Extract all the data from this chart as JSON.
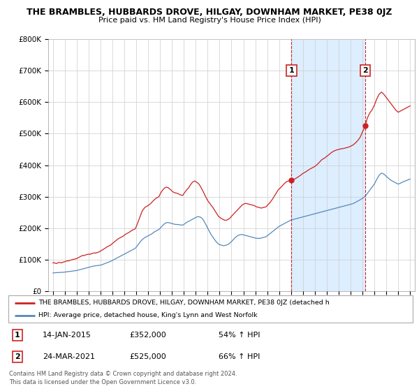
{
  "title": "THE BRAMBLES, HUBBARDS DROVE, HILGAY, DOWNHAM MARKET, PE38 0JZ",
  "subtitle": "Price paid vs. HM Land Registry's House Price Index (HPI)",
  "legend_line1": "THE BRAMBLES, HUBBARDS DROVE, HILGAY, DOWNHAM MARKET, PE38 0JZ (detached h",
  "legend_line2": "HPI: Average price, detached house, King's Lynn and West Norfolk",
  "footer1": "Contains HM Land Registry data © Crown copyright and database right 2024.",
  "footer2": "This data is licensed under the Open Government Licence v3.0.",
  "point1_label": "1",
  "point1_date": "14-JAN-2015",
  "point1_price": "£352,000",
  "point1_hpi": "54% ↑ HPI",
  "point1_x": 2015.04,
  "point1_y": 352000,
  "point2_label": "2",
  "point2_date": "24-MAR-2021",
  "point2_price": "£525,000",
  "point2_hpi": "66% ↑ HPI",
  "point2_x": 2021.23,
  "point2_y": 525000,
  "red_color": "#cc2222",
  "blue_color": "#5588bb",
  "shade_color": "#ddeeff",
  "background_color": "#ffffff",
  "grid_color": "#cccccc",
  "ylim": [
    0,
    800000
  ],
  "xlim_start": 1994.6,
  "xlim_end": 2025.4,
  "red_x": [
    1995.0,
    1995.1,
    1995.2,
    1995.3,
    1995.4,
    1995.5,
    1995.6,
    1995.7,
    1995.8,
    1995.9,
    1996.0,
    1996.1,
    1996.2,
    1996.3,
    1996.4,
    1996.5,
    1996.6,
    1996.7,
    1996.8,
    1996.9,
    1997.0,
    1997.1,
    1997.2,
    1997.3,
    1997.4,
    1997.5,
    1997.6,
    1997.7,
    1997.8,
    1997.9,
    1998.0,
    1998.1,
    1998.2,
    1998.3,
    1998.4,
    1998.5,
    1998.6,
    1998.7,
    1998.8,
    1998.9,
    1999.0,
    1999.1,
    1999.2,
    1999.3,
    1999.4,
    1999.5,
    1999.6,
    1999.7,
    1999.8,
    1999.9,
    2000.0,
    2000.1,
    2000.2,
    2000.3,
    2000.4,
    2000.5,
    2000.6,
    2000.7,
    2000.8,
    2000.9,
    2001.0,
    2001.1,
    2001.2,
    2001.3,
    2001.4,
    2001.5,
    2001.6,
    2001.7,
    2001.8,
    2001.9,
    2002.0,
    2002.1,
    2002.2,
    2002.3,
    2002.4,
    2002.5,
    2002.6,
    2002.7,
    2002.8,
    2002.9,
    2003.0,
    2003.1,
    2003.2,
    2003.3,
    2003.4,
    2003.5,
    2003.6,
    2003.7,
    2003.8,
    2003.9,
    2004.0,
    2004.1,
    2004.2,
    2004.3,
    2004.4,
    2004.5,
    2004.6,
    2004.7,
    2004.8,
    2004.9,
    2005.0,
    2005.1,
    2005.2,
    2005.3,
    2005.4,
    2005.5,
    2005.6,
    2005.7,
    2005.8,
    2005.9,
    2006.0,
    2006.1,
    2006.2,
    2006.3,
    2006.4,
    2006.5,
    2006.6,
    2006.7,
    2006.8,
    2006.9,
    2007.0,
    2007.1,
    2007.2,
    2007.3,
    2007.4,
    2007.5,
    2007.6,
    2007.7,
    2007.8,
    2007.9,
    2008.0,
    2008.1,
    2008.2,
    2008.3,
    2008.4,
    2008.5,
    2008.6,
    2008.7,
    2008.8,
    2008.9,
    2009.0,
    2009.1,
    2009.2,
    2009.3,
    2009.4,
    2009.5,
    2009.6,
    2009.7,
    2009.8,
    2009.9,
    2010.0,
    2010.1,
    2010.2,
    2010.3,
    2010.4,
    2010.5,
    2010.6,
    2010.7,
    2010.8,
    2010.9,
    2011.0,
    2011.1,
    2011.2,
    2011.3,
    2011.4,
    2011.5,
    2011.6,
    2011.7,
    2011.8,
    2011.9,
    2012.0,
    2012.1,
    2012.2,
    2012.3,
    2012.4,
    2012.5,
    2012.6,
    2012.7,
    2012.8,
    2012.9,
    2013.0,
    2013.1,
    2013.2,
    2013.3,
    2013.4,
    2013.5,
    2013.6,
    2013.7,
    2013.8,
    2013.9,
    2014.0,
    2014.1,
    2014.2,
    2014.3,
    2014.4,
    2014.5,
    2014.6,
    2014.7,
    2014.8,
    2014.9,
    2015.04,
    2015.2,
    2015.4,
    2015.6,
    2015.8,
    2016.0,
    2016.2,
    2016.4,
    2016.6,
    2016.8,
    2017.0,
    2017.2,
    2017.4,
    2017.6,
    2017.8,
    2018.0,
    2018.2,
    2018.4,
    2018.6,
    2018.8,
    2019.0,
    2019.2,
    2019.4,
    2019.6,
    2019.8,
    2020.0,
    2020.2,
    2020.4,
    2020.6,
    2020.8,
    2021.23,
    2021.4,
    2021.6,
    2021.8,
    2022.0,
    2022.2,
    2022.4,
    2022.6,
    2022.8,
    2023.0,
    2023.2,
    2023.4,
    2023.6,
    2023.8,
    2024.0,
    2024.2,
    2024.4,
    2024.6,
    2024.8,
    2025.0
  ],
  "red_y": [
    90000,
    91000,
    89000,
    88000,
    90000,
    92000,
    91000,
    90000,
    92000,
    93000,
    94000,
    95000,
    97000,
    96000,
    98000,
    99000,
    100000,
    101000,
    102000,
    103000,
    104000,
    106000,
    108000,
    110000,
    112000,
    114000,
    113000,
    115000,
    116000,
    117000,
    118000,
    117000,
    119000,
    120000,
    121000,
    122000,
    121000,
    123000,
    124000,
    125000,
    128000,
    130000,
    132000,
    135000,
    137000,
    140000,
    142000,
    144000,
    146000,
    148000,
    152000,
    155000,
    158000,
    161000,
    164000,
    167000,
    169000,
    171000,
    173000,
    175000,
    178000,
    181000,
    183000,
    185000,
    187000,
    190000,
    192000,
    195000,
    196000,
    198000,
    205000,
    215000,
    225000,
    235000,
    245000,
    255000,
    260000,
    265000,
    268000,
    270000,
    272000,
    275000,
    278000,
    282000,
    286000,
    290000,
    293000,
    296000,
    298000,
    300000,
    308000,
    315000,
    320000,
    325000,
    328000,
    330000,
    330000,
    328000,
    325000,
    322000,
    318000,
    315000,
    313000,
    312000,
    311000,
    310000,
    308000,
    306000,
    305000,
    304000,
    310000,
    315000,
    320000,
    325000,
    328000,
    335000,
    340000,
    345000,
    348000,
    350000,
    348000,
    345000,
    343000,
    338000,
    332000,
    325000,
    318000,
    310000,
    302000,
    295000,
    288000,
    282000,
    278000,
    272000,
    268000,
    262000,
    256000,
    250000,
    244000,
    238000,
    235000,
    232000,
    230000,
    228000,
    226000,
    225000,
    226000,
    228000,
    230000,
    233000,
    238000,
    242000,
    246000,
    250000,
    254000,
    258000,
    262000,
    266000,
    270000,
    274000,
    276000,
    278000,
    279000,
    278000,
    277000,
    276000,
    275000,
    274000,
    273000,
    272000,
    270000,
    268000,
    267000,
    266000,
    265000,
    264000,
    265000,
    266000,
    267000,
    268000,
    272000,
    276000,
    280000,
    285000,
    290000,
    296000,
    302000,
    308000,
    314000,
    320000,
    325000,
    328000,
    332000,
    336000,
    340000,
    344000,
    347000,
    349000,
    350000,
    351000,
    352000,
    354000,
    358000,
    363000,
    368000,
    374000,
    378000,
    383000,
    388000,
    392000,
    396000,
    402000,
    410000,
    418000,
    422000,
    428000,
    434000,
    440000,
    445000,
    448000,
    450000,
    452000,
    453000,
    455000,
    457000,
    460000,
    464000,
    470000,
    478000,
    488000,
    525000,
    548000,
    565000,
    575000,
    590000,
    610000,
    625000,
    632000,
    625000,
    615000,
    605000,
    595000,
    585000,
    575000,
    568000,
    572000,
    576000,
    580000,
    584000,
    588000
  ],
  "blue_x": [
    1995.0,
    1995.1,
    1995.2,
    1995.3,
    1995.4,
    1995.5,
    1995.6,
    1995.7,
    1995.8,
    1995.9,
    1996.0,
    1996.1,
    1996.2,
    1996.3,
    1996.4,
    1996.5,
    1996.6,
    1996.7,
    1996.8,
    1996.9,
    1997.0,
    1997.1,
    1997.2,
    1997.3,
    1997.4,
    1997.5,
    1997.6,
    1997.7,
    1997.8,
    1997.9,
    1998.0,
    1998.1,
    1998.2,
    1998.3,
    1998.4,
    1998.5,
    1998.6,
    1998.7,
    1998.8,
    1998.9,
    1999.0,
    1999.1,
    1999.2,
    1999.3,
    1999.4,
    1999.5,
    1999.6,
    1999.7,
    1999.8,
    1999.9,
    2000.0,
    2000.1,
    2000.2,
    2000.3,
    2000.4,
    2000.5,
    2000.6,
    2000.7,
    2000.8,
    2000.9,
    2001.0,
    2001.1,
    2001.2,
    2001.3,
    2001.4,
    2001.5,
    2001.6,
    2001.7,
    2001.8,
    2001.9,
    2002.0,
    2002.1,
    2002.2,
    2002.3,
    2002.4,
    2002.5,
    2002.6,
    2002.7,
    2002.8,
    2002.9,
    2003.0,
    2003.1,
    2003.2,
    2003.3,
    2003.4,
    2003.5,
    2003.6,
    2003.7,
    2003.8,
    2003.9,
    2004.0,
    2004.1,
    2004.2,
    2004.3,
    2004.4,
    2004.5,
    2004.6,
    2004.7,
    2004.8,
    2004.9,
    2005.0,
    2005.1,
    2005.2,
    2005.3,
    2005.4,
    2005.5,
    2005.6,
    2005.7,
    2005.8,
    2005.9,
    2006.0,
    2006.1,
    2006.2,
    2006.3,
    2006.4,
    2006.5,
    2006.6,
    2006.7,
    2006.8,
    2006.9,
    2007.0,
    2007.1,
    2007.2,
    2007.3,
    2007.4,
    2007.5,
    2007.6,
    2007.7,
    2007.8,
    2007.9,
    2008.0,
    2008.1,
    2008.2,
    2008.3,
    2008.4,
    2008.5,
    2008.6,
    2008.7,
    2008.8,
    2008.9,
    2009.0,
    2009.1,
    2009.2,
    2009.3,
    2009.4,
    2009.5,
    2009.6,
    2009.7,
    2009.8,
    2009.9,
    2010.0,
    2010.1,
    2010.2,
    2010.3,
    2010.4,
    2010.5,
    2010.6,
    2010.7,
    2010.8,
    2010.9,
    2011.0,
    2011.1,
    2011.2,
    2011.3,
    2011.4,
    2011.5,
    2011.6,
    2011.7,
    2011.8,
    2011.9,
    2012.0,
    2012.1,
    2012.2,
    2012.3,
    2012.4,
    2012.5,
    2012.6,
    2012.7,
    2012.8,
    2012.9,
    2013.0,
    2013.1,
    2013.2,
    2013.3,
    2013.4,
    2013.5,
    2013.6,
    2013.7,
    2013.8,
    2013.9,
    2014.0,
    2014.1,
    2014.2,
    2014.3,
    2014.4,
    2014.5,
    2014.6,
    2014.7,
    2014.8,
    2014.9,
    2015.0,
    2015.2,
    2015.4,
    2015.6,
    2015.8,
    2016.0,
    2016.2,
    2016.4,
    2016.6,
    2016.8,
    2017.0,
    2017.2,
    2017.4,
    2017.6,
    2017.8,
    2018.0,
    2018.2,
    2018.4,
    2018.6,
    2018.8,
    2019.0,
    2019.2,
    2019.4,
    2019.6,
    2019.8,
    2020.0,
    2020.2,
    2020.4,
    2020.6,
    2020.8,
    2021.0,
    2021.2,
    2021.4,
    2021.6,
    2021.8,
    2022.0,
    2022.2,
    2022.4,
    2022.6,
    2022.8,
    2023.0,
    2023.2,
    2023.4,
    2023.6,
    2023.8,
    2024.0,
    2024.2,
    2024.4,
    2024.6,
    2024.8,
    2025.0
  ],
  "blue_y": [
    58000,
    58500,
    59000,
    59200,
    59400,
    59600,
    59800,
    60000,
    60200,
    60400,
    61000,
    61500,
    62000,
    62500,
    63000,
    63500,
    64000,
    64500,
    65000,
    65500,
    66000,
    67000,
    68000,
    69000,
    70000,
    71000,
    72000,
    73000,
    74000,
    75000,
    76000,
    77000,
    78000,
    79000,
    80000,
    80500,
    81000,
    81500,
    82000,
    82500,
    83000,
    84000,
    85500,
    87000,
    88500,
    90000,
    91500,
    93000,
    94500,
    96000,
    98000,
    100000,
    102000,
    104000,
    106000,
    108000,
    110000,
    112000,
    114000,
    116000,
    118000,
    120000,
    122000,
    124000,
    126000,
    128000,
    130000,
    132000,
    134000,
    136000,
    140000,
    145000,
    150000,
    155000,
    160000,
    164000,
    167000,
    170000,
    172000,
    174000,
    176000,
    178000,
    180000,
    182000,
    185000,
    188000,
    190000,
    192000,
    194000,
    196000,
    200000,
    204000,
    208000,
    212000,
    215000,
    217000,
    218000,
    218000,
    217000,
    216000,
    215000,
    214000,
    213000,
    212000,
    212000,
    212000,
    211000,
    211000,
    210000,
    210000,
    212000,
    215000,
    218000,
    220000,
    222000,
    224000,
    226000,
    228000,
    230000,
    232000,
    234000,
    236000,
    237000,
    236000,
    235000,
    232000,
    228000,
    222000,
    215000,
    208000,
    200000,
    193000,
    186000,
    179000,
    174000,
    168000,
    163000,
    158000,
    154000,
    150000,
    148000,
    147000,
    146000,
    145000,
    145000,
    146000,
    147000,
    149000,
    151000,
    154000,
    158000,
    162000,
    166000,
    170000,
    173000,
    176000,
    178000,
    179000,
    180000,
    180000,
    179000,
    178000,
    177000,
    176000,
    175000,
    174000,
    173000,
    172000,
    171000,
    170000,
    169000,
    168000,
    168000,
    168000,
    168000,
    169000,
    170000,
    171000,
    172000,
    173000,
    176000,
    179000,
    182000,
    185000,
    188000,
    191000,
    194000,
    197000,
    200000,
    203000,
    206000,
    208000,
    210000,
    212000,
    214000,
    216000,
    218000,
    220000,
    222000,
    224000,
    226000,
    228000,
    230000,
    232000,
    234000,
    236000,
    238000,
    240000,
    242000,
    244000,
    246000,
    248000,
    250000,
    252000,
    254000,
    256000,
    258000,
    260000,
    262000,
    264000,
    266000,
    268000,
    270000,
    272000,
    274000,
    276000,
    278000,
    282000,
    286000,
    290000,
    295000,
    300000,
    310000,
    320000,
    330000,
    340000,
    355000,
    368000,
    375000,
    372000,
    365000,
    358000,
    352000,
    348000,
    344000,
    340000,
    343000,
    347000,
    350000,
    353000,
    356000
  ]
}
